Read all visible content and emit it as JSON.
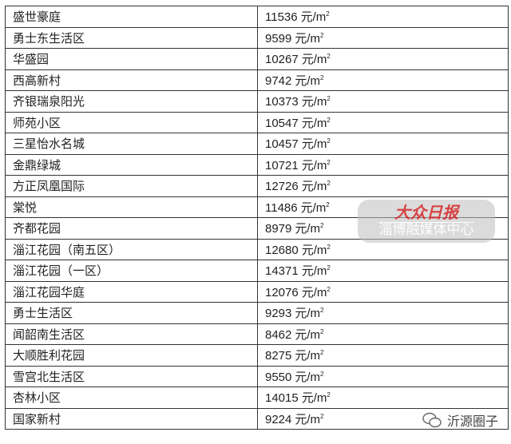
{
  "rows": [
    {
      "name": "盛世豪庭",
      "price": "11536"
    },
    {
      "name": "勇士东生活区",
      "price": "9599"
    },
    {
      "name": "华盛园",
      "price": "10267"
    },
    {
      "name": "西高新村",
      "price": "9742"
    },
    {
      "name": "齐银瑞泉阳光",
      "price": "10373"
    },
    {
      "name": "师苑小区",
      "price": "10547"
    },
    {
      "name": "三星怡水名城",
      "price": "10457"
    },
    {
      "name": "金鼎绿城",
      "price": "10721"
    },
    {
      "name": "方正凤凰国际",
      "price": "12726"
    },
    {
      "name": "棠悦",
      "price": "11486"
    },
    {
      "name": "齐都花园",
      "price": "8979"
    },
    {
      "name": "淄江花园（南五区）",
      "price": "12680"
    },
    {
      "name": "淄江花园（一区）",
      "price": "14371"
    },
    {
      "name": "淄江花园华庭",
      "price": "12076"
    },
    {
      "name": "勇士生活区",
      "price": "9293"
    },
    {
      "name": "闻韶南生活区",
      "price": "8462"
    },
    {
      "name": "大顺胜利花园",
      "price": "8275"
    },
    {
      "name": "雪宫北生活区",
      "price": "9550"
    },
    {
      "name": "杏林小区",
      "price": "14015"
    },
    {
      "name": "国家新村",
      "price": "9224"
    }
  ],
  "unit": "元/m",
  "unit_sup": "2",
  "watermark": {
    "logo": "大众日报",
    "org": "淄博融媒体中心"
  },
  "wechat": {
    "account": "沂源圈子",
    "icon": "wechat-icon"
  }
}
